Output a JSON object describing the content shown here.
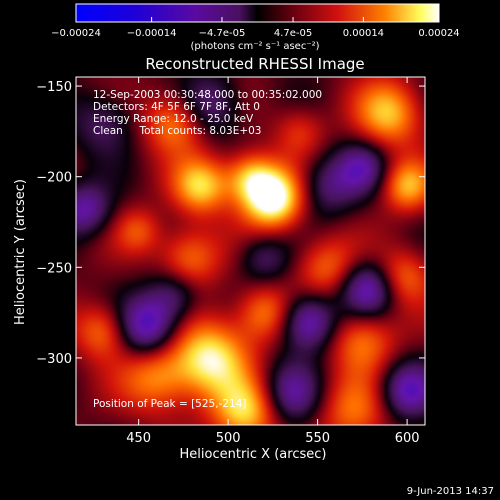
{
  "chart_data": {
    "type": "heatmap",
    "title": "Reconstructed RHESSI Image",
    "xlabel": "Heliocentric X (arcsec)",
    "ylabel": "Heliocentric Y (arcsec)",
    "xlim": [
      415,
      610
    ],
    "ylim": [
      -337,
      -145
    ],
    "x_ticks": [
      450,
      500,
      550,
      600
    ],
    "y_ticks": [
      -150,
      -200,
      -250,
      -300
    ],
    "colorbar": {
      "min": -0.00024,
      "max": 0.00024,
      "ticks": [
        "-0.00024",
        "-0.00014",
        "-4.7e-05",
        "4.7e-05",
        "0.00014",
        "0.00024"
      ],
      "unit_line": "(photons cm⁻² s⁻¹ asec⁻²)"
    },
    "annotations": {
      "time_range": "12-Sep-2003 00:30:48.000 to 00:35:02.000",
      "detectors": "Detectors: 4F 5F 6F 7F 8F, Att 0",
      "energy": "Energy Range: 12.0 - 25.0 keV",
      "clean": "Clean     Total counts: 8.03E+03",
      "peak": "Position of Peak = [525,-214]"
    },
    "peak": {
      "x": 525,
      "y": -214
    },
    "features": [
      {
        "x": 525,
        "y": -212,
        "v": 1.0,
        "s": 12
      },
      {
        "x": 512,
        "y": -200,
        "v": 0.55,
        "s": 10
      },
      {
        "x": 485,
        "y": -205,
        "v": 0.7,
        "s": 11
      },
      {
        "x": 470,
        "y": -170,
        "v": 0.55,
        "s": 12
      },
      {
        "x": 590,
        "y": -165,
        "v": 0.65,
        "s": 13
      },
      {
        "x": 600,
        "y": -205,
        "v": 0.6,
        "s": 10
      },
      {
        "x": 478,
        "y": -245,
        "v": 0.5,
        "s": 12
      },
      {
        "x": 430,
        "y": -285,
        "v": 0.5,
        "s": 11
      },
      {
        "x": 460,
        "y": -310,
        "v": 0.55,
        "s": 14
      },
      {
        "x": 490,
        "y": -300,
        "v": 0.8,
        "s": 15
      },
      {
        "x": 510,
        "y": -330,
        "v": 0.7,
        "s": 13
      },
      {
        "x": 555,
        "y": -250,
        "v": 0.45,
        "s": 12
      },
      {
        "x": 520,
        "y": -275,
        "v": 0.5,
        "s": 11
      },
      {
        "x": 575,
        "y": -290,
        "v": 0.5,
        "s": 13
      },
      {
        "x": 598,
        "y": -255,
        "v": 0.45,
        "s": 11
      },
      {
        "x": 570,
        "y": -330,
        "v": 0.45,
        "s": 14
      },
      {
        "x": 450,
        "y": -230,
        "v": 0.35,
        "s": 9
      },
      {
        "x": 540,
        "y": -175,
        "v": 0.3,
        "s": 10
      },
      {
        "x": 455,
        "y": -283,
        "v": -0.75,
        "s": 12
      },
      {
        "x": 420,
        "y": -218,
        "v": -0.55,
        "s": 10
      },
      {
        "x": 545,
        "y": -280,
        "v": -0.7,
        "s": 11
      },
      {
        "x": 578,
        "y": -262,
        "v": -0.65,
        "s": 11
      },
      {
        "x": 600,
        "y": -318,
        "v": -0.6,
        "s": 11
      },
      {
        "x": 555,
        "y": -205,
        "v": -0.4,
        "s": 12
      },
      {
        "x": 490,
        "y": -160,
        "v": -0.45,
        "s": 12
      },
      {
        "x": 575,
        "y": -195,
        "v": -0.45,
        "s": 10
      },
      {
        "x": 520,
        "y": -245,
        "v": -0.35,
        "s": 10
      },
      {
        "x": 535,
        "y": -320,
        "v": -0.5,
        "s": 12
      },
      {
        "x": 430,
        "y": -170,
        "v": -0.35,
        "s": 12
      },
      {
        "x": 470,
        "y": -265,
        "v": -0.4,
        "s": 10
      }
    ]
  },
  "footer": {
    "date": "9-Jun-2013 14:37"
  }
}
